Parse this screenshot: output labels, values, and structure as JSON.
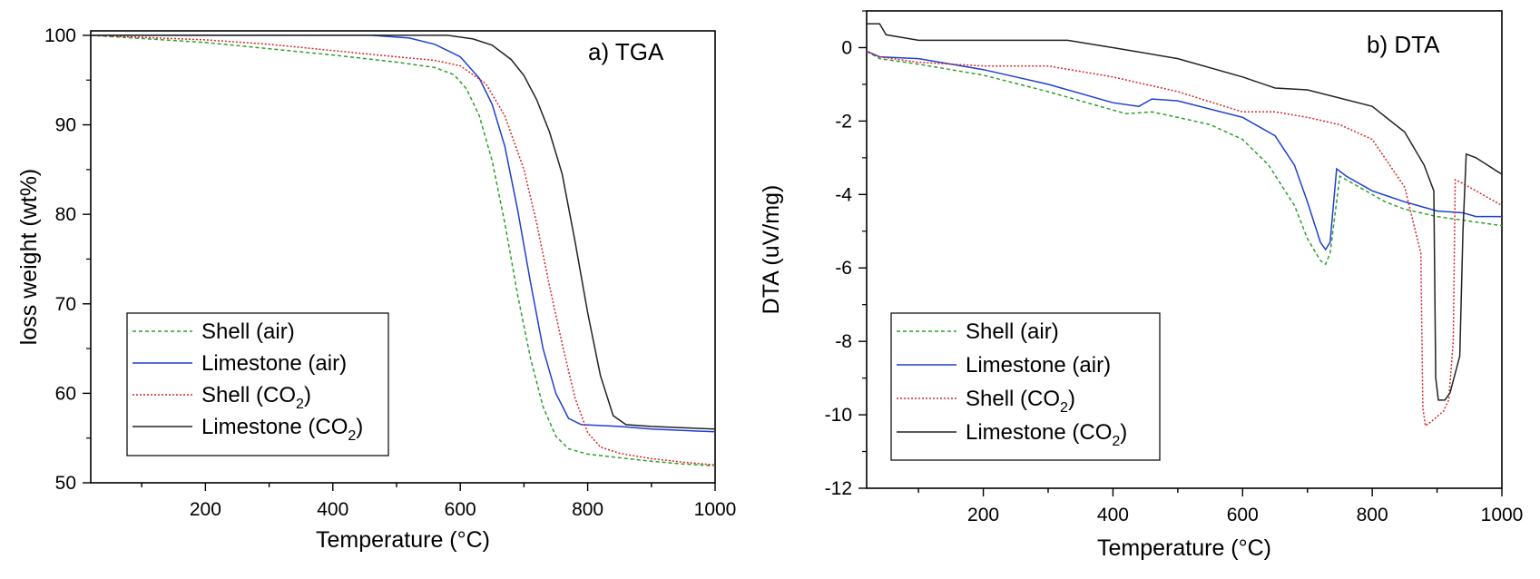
{
  "chart_data": [
    {
      "type": "line",
      "title": "a) TGA",
      "xlabel": "Temperature (°C)",
      "ylabel": "loss weight (wt%)",
      "xlim": [
        20,
        1000
      ],
      "ylim": [
        50,
        100.5
      ],
      "xticks": [
        200,
        400,
        600,
        800,
        1000
      ],
      "yticks": [
        50,
        60,
        70,
        80,
        90,
        100
      ],
      "grid": false,
      "legend": "lower-left",
      "series": [
        {
          "name": "Shell (air)",
          "label_main": "Shell (air)",
          "label_sub": "",
          "label_tail": "",
          "color": "#2ca02c",
          "dash": "4,3",
          "points": [
            [
              20,
              100
            ],
            [
              200,
              99.2
            ],
            [
              300,
              98.5
            ],
            [
              400,
              97.8
            ],
            [
              500,
              97.0
            ],
            [
              560,
              96.4
            ],
            [
              590,
              95.6
            ],
            [
              610,
              94.0
            ],
            [
              630,
              91.0
            ],
            [
              650,
              86.0
            ],
            [
              670,
              79.0
            ],
            [
              690,
              71.0
            ],
            [
              710,
              64.0
            ],
            [
              730,
              58.5
            ],
            [
              750,
              55.2
            ],
            [
              770,
              53.8
            ],
            [
              800,
              53.2
            ],
            [
              850,
              52.8
            ],
            [
              900,
              52.4
            ],
            [
              950,
              52.1
            ],
            [
              1000,
              51.9
            ]
          ]
        },
        {
          "name": "Limestone (air)",
          "label_main": "Limestone (air)",
          "label_sub": "",
          "label_tail": "",
          "color": "#1f3fd0",
          "dash": "",
          "points": [
            [
              20,
              100
            ],
            [
              460,
              100
            ],
            [
              520,
              99.7
            ],
            [
              560,
              99.0
            ],
            [
              600,
              97.6
            ],
            [
              630,
              95.2
            ],
            [
              650,
              92.3
            ],
            [
              670,
              87.6
            ],
            [
              690,
              80.5
            ],
            [
              710,
              72.5
            ],
            [
              730,
              65.0
            ],
            [
              750,
              60.0
            ],
            [
              770,
              57.2
            ],
            [
              790,
              56.5
            ],
            [
              850,
              56.3
            ],
            [
              900,
              56.0
            ],
            [
              1000,
              55.7
            ]
          ]
        },
        {
          "name": "Shell (CO2)",
          "label_main": "Shell (CO",
          "label_sub": "2",
          "label_tail": ")",
          "color": "#d62728",
          "dash": "2,2",
          "points": [
            [
              20,
              100
            ],
            [
              200,
              99.5
            ],
            [
              300,
              99.0
            ],
            [
              400,
              98.3
            ],
            [
              500,
              97.6
            ],
            [
              560,
              97.2
            ],
            [
              600,
              96.6
            ],
            [
              640,
              94.6
            ],
            [
              670,
              91.0
            ],
            [
              700,
              85.0
            ],
            [
              720,
              79.0
            ],
            [
              740,
              72.0
            ],
            [
              760,
              65.5
            ],
            [
              780,
              59.5
            ],
            [
              800,
              55.6
            ],
            [
              820,
              54.0
            ],
            [
              850,
              53.3
            ],
            [
              900,
              52.7
            ],
            [
              950,
              52.3
            ],
            [
              1000,
              52.0
            ]
          ]
        },
        {
          "name": "Limestone (CO2)",
          "label_main": "Limestone (CO",
          "label_sub": "2",
          "label_tail": ")",
          "color": "#222222",
          "dash": "",
          "points": [
            [
              20,
              100
            ],
            [
              580,
              100
            ],
            [
              620,
              99.6
            ],
            [
              650,
              98.9
            ],
            [
              680,
              97.3
            ],
            [
              700,
              95.5
            ],
            [
              720,
              92.8
            ],
            [
              740,
              89.2
            ],
            [
              760,
              84.5
            ],
            [
              780,
              77.0
            ],
            [
              800,
              69.0
            ],
            [
              820,
              62.0
            ],
            [
              840,
              57.5
            ],
            [
              860,
              56.5
            ],
            [
              900,
              56.3
            ],
            [
              1000,
              56.0
            ]
          ]
        }
      ]
    },
    {
      "type": "line",
      "title": "b) DTA",
      "xlabel": "Temperature (°C)",
      "ylabel": "DTA (uV/mg)",
      "xlim": [
        20,
        1000
      ],
      "ylim": [
        -12,
        1.0
      ],
      "xticks": [
        200,
        400,
        600,
        800,
        1000
      ],
      "yticks": [
        -12,
        -10,
        -8,
        -6,
        -4,
        -2,
        0
      ],
      "grid": false,
      "legend": "lower-left",
      "series": [
        {
          "name": "Shell (air)",
          "label_main": "Shell (air)",
          "label_sub": "",
          "label_tail": "",
          "color": "#2ca02c",
          "dash": "4,3",
          "points": [
            [
              20,
              -0.1
            ],
            [
              40,
              -0.3
            ],
            [
              100,
              -0.45
            ],
            [
              200,
              -0.75
            ],
            [
              300,
              -1.2
            ],
            [
              380,
              -1.6
            ],
            [
              420,
              -1.8
            ],
            [
              460,
              -1.75
            ],
            [
              500,
              -1.9
            ],
            [
              550,
              -2.1
            ],
            [
              600,
              -2.5
            ],
            [
              640,
              -3.2
            ],
            [
              680,
              -4.3
            ],
            [
              700,
              -5.2
            ],
            [
              720,
              -5.8
            ],
            [
              728,
              -5.9
            ],
            [
              735,
              -5.6
            ],
            [
              750,
              -3.5
            ],
            [
              780,
              -3.8
            ],
            [
              820,
              -4.2
            ],
            [
              850,
              -4.4
            ],
            [
              900,
              -4.6
            ],
            [
              1000,
              -4.85
            ]
          ]
        },
        {
          "name": "Limestone (air)",
          "label_main": "Limestone (air)",
          "label_sub": "",
          "label_tail": "",
          "color": "#1f3fd0",
          "dash": "",
          "points": [
            [
              20,
              -0.1
            ],
            [
              40,
              -0.25
            ],
            [
              100,
              -0.3
            ],
            [
              200,
              -0.6
            ],
            [
              300,
              -1.0
            ],
            [
              400,
              -1.5
            ],
            [
              440,
              -1.6
            ],
            [
              460,
              -1.4
            ],
            [
              500,
              -1.45
            ],
            [
              600,
              -1.9
            ],
            [
              650,
              -2.4
            ],
            [
              680,
              -3.2
            ],
            [
              700,
              -4.2
            ],
            [
              720,
              -5.3
            ],
            [
              728,
              -5.5
            ],
            [
              735,
              -5.3
            ],
            [
              745,
              -3.3
            ],
            [
              760,
              -3.5
            ],
            [
              800,
              -3.9
            ],
            [
              850,
              -4.2
            ],
            [
              900,
              -4.45
            ],
            [
              940,
              -4.5
            ],
            [
              960,
              -4.6
            ],
            [
              1000,
              -4.6
            ]
          ]
        },
        {
          "name": "Shell (CO2)",
          "label_main": "Shell (CO",
          "label_sub": "2",
          "label_tail": ")",
          "color": "#d62728",
          "dash": "2,2",
          "points": [
            [
              20,
              -0.1
            ],
            [
              40,
              -0.25
            ],
            [
              100,
              -0.4
            ],
            [
              200,
              -0.5
            ],
            [
              300,
              -0.5
            ],
            [
              400,
              -0.8
            ],
            [
              500,
              -1.2
            ],
            [
              600,
              -1.75
            ],
            [
              650,
              -1.75
            ],
            [
              700,
              -1.9
            ],
            [
              750,
              -2.1
            ],
            [
              800,
              -2.5
            ],
            [
              850,
              -3.8
            ],
            [
              875,
              -5.6
            ],
            [
              878,
              -9.8
            ],
            [
              882,
              -10.3
            ],
            [
              890,
              -10.2
            ],
            [
              910,
              -9.9
            ],
            [
              918,
              -9.6
            ],
            [
              925,
              -8.0
            ],
            [
              928,
              -3.6
            ],
            [
              940,
              -3.7
            ],
            [
              960,
              -3.9
            ],
            [
              1000,
              -4.3
            ]
          ]
        },
        {
          "name": "Limestone (CO2)",
          "label_main": "Limestone (CO",
          "label_sub": "2",
          "label_tail": ")",
          "color": "#222222",
          "dash": "",
          "points": [
            [
              20,
              0.65
            ],
            [
              40,
              0.65
            ],
            [
              50,
              0.35
            ],
            [
              100,
              0.2
            ],
            [
              200,
              0.2
            ],
            [
              300,
              0.2
            ],
            [
              330,
              0.2
            ],
            [
              400,
              0.0
            ],
            [
              500,
              -0.3
            ],
            [
              600,
              -0.8
            ],
            [
              650,
              -1.1
            ],
            [
              700,
              -1.15
            ],
            [
              800,
              -1.6
            ],
            [
              850,
              -2.3
            ],
            [
              880,
              -3.2
            ],
            [
              895,
              -3.9
            ],
            [
              898,
              -9.0
            ],
            [
              902,
              -9.6
            ],
            [
              912,
              -9.6
            ],
            [
              920,
              -9.4
            ],
            [
              935,
              -8.4
            ],
            [
              940,
              -5.0
            ],
            [
              945,
              -2.9
            ],
            [
              960,
              -3.0
            ],
            [
              1000,
              -3.45
            ]
          ]
        }
      ]
    }
  ]
}
